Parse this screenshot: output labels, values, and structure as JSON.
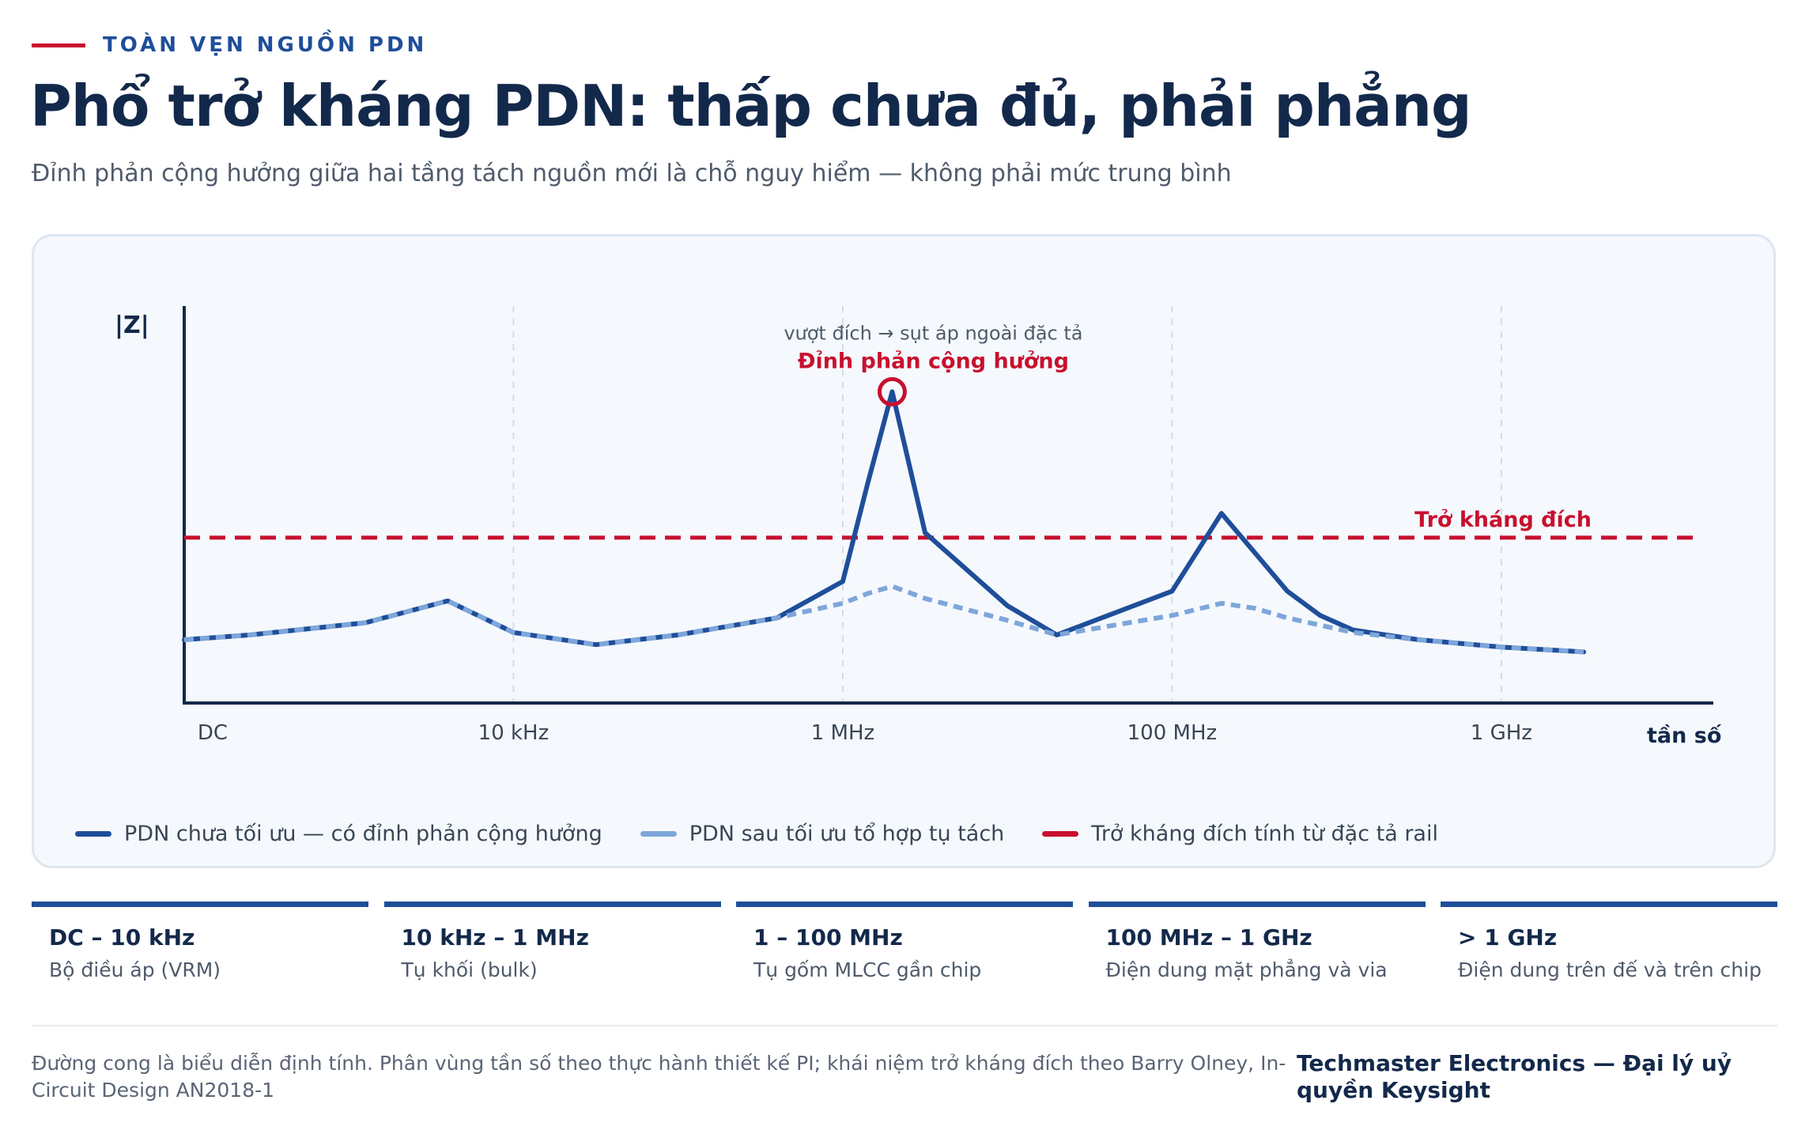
{
  "header": {
    "eyebrow": "TOÀN VẸN NGUỒN PDN",
    "title": "Phổ trở kháng PDN: thấp chưa đủ, phải phẳng",
    "subtitle": "Đỉnh phản cộng hưởng giữa hai tầng tách nguồn mới là chỗ nguy hiểm — không phải mức trung bình"
  },
  "colors": {
    "accent_red": "#c8102e",
    "series_primary": "#1f4e9a",
    "series_optimized": "#7ea6da",
    "axis": "#13294b"
  },
  "chart_data": {
    "type": "line",
    "ylabel": "|Z|",
    "xlabel": "tần số",
    "x_ticks": [
      "DC",
      "10 kHz",
      "1 MHz",
      "100 MHz",
      "1 GHz"
    ],
    "x": [
      0,
      0.4,
      1.1,
      1.6,
      2,
      2.5,
      3,
      3.6,
      4,
      4.15,
      4.3,
      4.5,
      5,
      5.3,
      6,
      6.3,
      6.5,
      6.7,
      6.9,
      7.1,
      7.5,
      8,
      8.5
    ],
    "series": [
      {
        "name": "PDN chưa tối ưu — có đỉnh phản cộng hưởng",
        "values": [
          1.3,
          1.4,
          1.65,
          2.1,
          1.45,
          1.2,
          1.4,
          1.75,
          2.5,
          4.5,
          6.4,
          3.5,
          2.0,
          1.4,
          2.3,
          3.9,
          3.1,
          2.3,
          1.8,
          1.5,
          1.3,
          1.15,
          1.05
        ]
      },
      {
        "name": "PDN sau tối ưu tổ hợp tụ tách",
        "values": [
          1.3,
          1.4,
          1.65,
          2.1,
          1.45,
          1.2,
          1.4,
          1.75,
          2.05,
          2.25,
          2.4,
          2.15,
          1.7,
          1.4,
          1.8,
          2.05,
          1.95,
          1.75,
          1.6,
          1.45,
          1.3,
          1.15,
          1.05
        ]
      }
    ],
    "target": {
      "name": "Trở kháng đích tính từ đặc tả rail",
      "value": 3.4,
      "label": "Trở kháng đích"
    },
    "annotation": {
      "x": 4.3,
      "title": "Đỉnh phản cộng hưởng",
      "note": "vượt đích → sụt áp ngoài đặc tả"
    },
    "xlim": [
      0,
      8.5
    ],
    "ylim": [
      0,
      8
    ],
    "grid": "vertical dashed at ticks"
  },
  "bands": [
    {
      "range": "DC – 10 kHz",
      "desc": "Bộ điều áp (VRM)"
    },
    {
      "range": "10 kHz – 1 MHz",
      "desc": "Tụ khối (bulk)"
    },
    {
      "range": "1 – 100 MHz",
      "desc": "Tụ gốm MLCC gần chip"
    },
    {
      "range": "100 MHz – 1 GHz",
      "desc": "Điện dung mặt phẳng và via"
    },
    {
      "range": "> 1 GHz",
      "desc": "Điện dung trên đế và trên chip"
    }
  ],
  "footer": {
    "note": "Đường cong là biểu diễn định tính. Phân vùng tần số theo thực hành thiết kế PI; khái niệm trở kháng đích theo Barry Olney, In-Circuit Design AN2018-1",
    "credit": "Techmaster Electronics — Đại lý uỷ quyền Keysight"
  }
}
